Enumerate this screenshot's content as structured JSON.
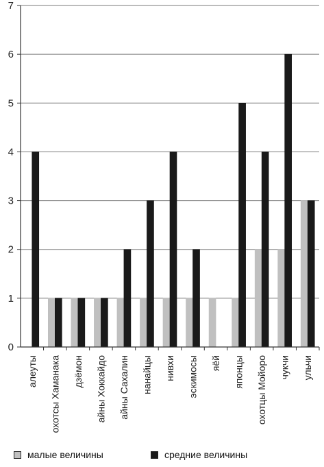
{
  "chart_data": {
    "type": "bar",
    "title": "",
    "xlabel": "",
    "ylabel": "",
    "ylim": [
      0,
      7
    ],
    "yticks": [
      "0",
      "1",
      "2",
      "3",
      "4",
      "5",
      "6",
      "7"
    ],
    "grid": true,
    "legend_position": "bottom",
    "categories": [
      "алеуты",
      "охотсы Хаманака",
      "дзёмон",
      "айны Хоккайдо",
      "айны Сахалин",
      "нанайцы",
      "нивхи",
      "эскимосы",
      "яёй",
      "японцы",
      "охотцы Мойоро",
      "чукчи",
      "ульчи"
    ],
    "series": [
      {
        "name": "малые величины",
        "color": "#c0c0c0",
        "values": [
          0,
          1,
          1,
          1,
          1,
          1,
          1,
          1,
          1,
          1,
          2,
          2,
          3
        ]
      },
      {
        "name": "средние величины",
        "color": "#1a1a1a",
        "values": [
          4,
          1,
          1,
          1,
          2,
          3,
          4,
          2,
          0,
          5,
          4,
          6,
          3
        ]
      }
    ]
  }
}
